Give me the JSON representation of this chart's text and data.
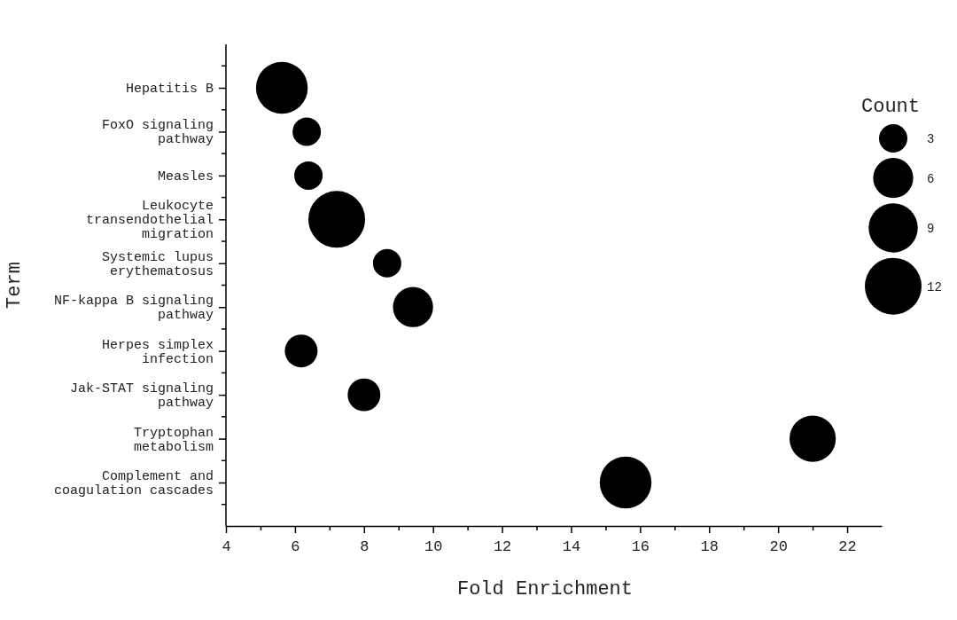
{
  "chart_data": {
    "type": "bubble",
    "xlabel": "Fold Enrichment",
    "ylabel": "Term",
    "legend_title": "Count",
    "color": "#000000",
    "categories": [
      "Hepatitis B",
      "FoxO signaling pathway",
      "Measles",
      "Leukocyte transendothelial migration",
      "Systemic lupus erythematosus",
      "NF-kappa B signaling pathway",
      "Herpes simplex infection",
      "Jak-STAT signaling pathway",
      "Tryptophan metabolism",
      "Complement and coagulation cascades"
    ],
    "values": [
      5.62,
      6.34,
      6.39,
      7.21,
      8.67,
      9.42,
      6.18,
      8.0,
      21.0,
      15.58
    ],
    "sizes": [
      10,
      3,
      3,
      12,
      3,
      6,
      4,
      4,
      8,
      10
    ],
    "size_legend": [
      3,
      6,
      9,
      12
    ],
    "orientation": "horizontal",
    "xlim": [
      4,
      23
    ],
    "xticks": [
      4,
      {
        "value": 5,
        "label": null
      },
      6,
      {
        "value": 7,
        "label": null
      },
      8,
      {
        "value": 9,
        "label": null
      },
      10,
      {
        "value": 11,
        "label": null
      },
      12,
      {
        "value": 13,
        "label": null
      },
      14,
      {
        "value": 15,
        "label": null
      },
      16,
      {
        "value": 17,
        "label": null
      },
      18,
      {
        "value": 19,
        "label": null
      },
      20,
      {
        "value": 21,
        "label": null
      },
      22
    ],
    "grid": false
  }
}
